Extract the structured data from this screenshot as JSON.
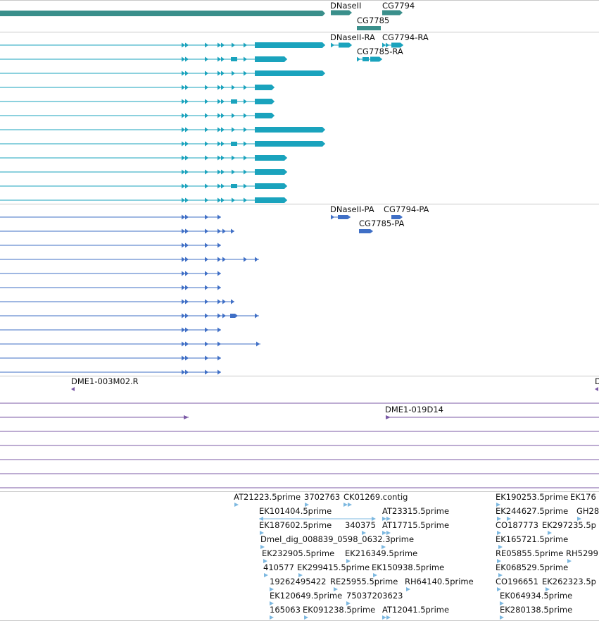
{
  "colors": {
    "gene": "#3a8f8b",
    "mrna": "#1aa3bd",
    "protein": "#3f6fc6",
    "est_clone": "#7b5aa6",
    "est": "#7db8e0",
    "separator": "#c8c8c8"
  },
  "tracks": {
    "genes": {
      "labels": [
        {
          "id": "dnaseii",
          "text": "DNaseII"
        },
        {
          "id": "cg7794",
          "text": "CG7794"
        },
        {
          "id": "cg7785",
          "text": "CG7785"
        }
      ]
    },
    "mrna": {
      "labels": [
        {
          "id": "dnaseii-ra",
          "text": "DNaseII-RA"
        },
        {
          "id": "cg7794-ra",
          "text": "CG7794-RA"
        },
        {
          "id": "cg7785-ra",
          "text": "CG7785-RA"
        }
      ]
    },
    "protein": {
      "labels": [
        {
          "id": "dnaseii-pa",
          "text": "DNaseII-PA"
        },
        {
          "id": "cg7794-pa",
          "text": "CG7794-PA"
        },
        {
          "id": "cg7785-pa",
          "text": "CG7785-PA"
        }
      ]
    },
    "est_clones": {
      "labels": [
        {
          "id": "dme1-003m02-r",
          "text": "DME1-003M02.R"
        },
        {
          "id": "dme1-019d14",
          "text": "DME1-019D14"
        },
        {
          "id": "d-truncated",
          "text": "D"
        }
      ]
    },
    "ests": {
      "labels": [
        {
          "id": "at21223",
          "text": "AT21223.5prime"
        },
        {
          "id": "n3702763",
          "text": "3702763"
        },
        {
          "id": "ck01269",
          "text": "CK01269.contig"
        },
        {
          "id": "ek190253",
          "text": "EK190253.5prime"
        },
        {
          "id": "ek176",
          "text": "EK176"
        },
        {
          "id": "ek101404",
          "text": "EK101404.5prime"
        },
        {
          "id": "at23315",
          "text": "AT23315.5prime"
        },
        {
          "id": "ek244627",
          "text": "EK244627.5prime"
        },
        {
          "id": "gh28",
          "text": "GH28"
        },
        {
          "id": "ek187602",
          "text": "EK187602.5prime"
        },
        {
          "id": "n340375",
          "text": "340375"
        },
        {
          "id": "at17715",
          "text": "AT17715.5prime"
        },
        {
          "id": "co187773",
          "text": "CO187773"
        },
        {
          "id": "ek297235",
          "text": "EK297235.5p"
        },
        {
          "id": "dmel-dig",
          "text": "Dmel_dig_008839_0598_0632.3prime"
        },
        {
          "id": "ek165721",
          "text": "EK165721.5prime"
        },
        {
          "id": "ek232905",
          "text": "EK232905.5prime"
        },
        {
          "id": "ek216349",
          "text": "EK216349.5prime"
        },
        {
          "id": "re05855",
          "text": "RE05855.5prime"
        },
        {
          "id": "rh5299",
          "text": "RH5299"
        },
        {
          "id": "n410577",
          "text": "410577"
        },
        {
          "id": "ek299415",
          "text": "EK299415.5prime"
        },
        {
          "id": "ek150938",
          "text": "EK150938.5prime"
        },
        {
          "id": "ek068529",
          "text": "EK068529.5prime"
        },
        {
          "id": "n19262495422",
          "text": "19262495422"
        },
        {
          "id": "re25955",
          "text": "RE25955.5prime"
        },
        {
          "id": "rh64140",
          "text": "RH64140.5prime"
        },
        {
          "id": "co196651",
          "text": "CO196651"
        },
        {
          "id": "ek262323",
          "text": "EK262323.5p"
        },
        {
          "id": "ek120649",
          "text": "EK120649.5prime"
        },
        {
          "id": "n75037203623",
          "text": "75037203623"
        },
        {
          "id": "ek064934",
          "text": "EK064934.5prime"
        },
        {
          "id": "n165063",
          "text": "165063"
        },
        {
          "id": "ek091238",
          "text": "EK091238.5prime"
        },
        {
          "id": "at12041",
          "text": "AT12041.5prime"
        },
        {
          "id": "ek280138",
          "text": "EK280138.5prime"
        }
      ]
    }
  }
}
